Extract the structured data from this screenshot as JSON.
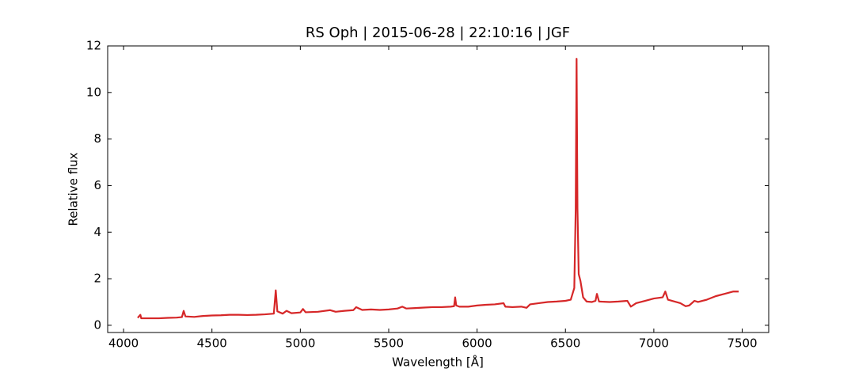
{
  "chart_data": {
    "type": "line",
    "title": "RS Oph | 2015-06-28 | 22:10:16 | JGF",
    "x_label": "Wavelength [Å]",
    "y_label": "Relative flux",
    "xlim": [
      3910,
      7650
    ],
    "ylim": [
      -0.31,
      12.0
    ],
    "xticks": [
      4000,
      4500,
      5000,
      5500,
      6000,
      6500,
      7000,
      7500
    ],
    "yticks": [
      0,
      2,
      4,
      6,
      8,
      10,
      12
    ],
    "tick_direction": "in",
    "series": [
      {
        "color": "#d62728",
        "x": [
          4080,
          4095,
          4100,
          4150,
          4200,
          4250,
          4300,
          4330,
          4340,
          4350,
          4400,
          4450,
          4500,
          4550,
          4600,
          4650,
          4700,
          4750,
          4800,
          4850,
          4861,
          4870,
          4900,
          4922,
          4950,
          5000,
          5015,
          5030,
          5100,
          5169,
          5200,
          5250,
          5300,
          5316,
          5350,
          5400,
          5450,
          5500,
          5550,
          5577,
          5600,
          5650,
          5700,
          5750,
          5800,
          5850,
          5870,
          5876,
          5882,
          5900,
          5950,
          6000,
          6050,
          6100,
          6150,
          6160,
          6200,
          6250,
          6280,
          6300,
          6350,
          6400,
          6450,
          6500,
          6530,
          6550,
          6558,
          6563,
          6568,
          6575,
          6585,
          6600,
          6620,
          6650,
          6670,
          6678,
          6690,
          6750,
          6800,
          6850,
          6870,
          6900,
          6950,
          7000,
          7050,
          7065,
          7080,
          7150,
          7180,
          7200,
          7230,
          7250,
          7300,
          7350,
          7400,
          7450,
          7480
        ],
        "values": [
          0.32,
          0.45,
          0.3,
          0.3,
          0.3,
          0.32,
          0.33,
          0.35,
          0.62,
          0.38,
          0.36,
          0.4,
          0.42,
          0.43,
          0.45,
          0.45,
          0.44,
          0.45,
          0.47,
          0.5,
          1.5,
          0.6,
          0.5,
          0.62,
          0.52,
          0.55,
          0.7,
          0.56,
          0.58,
          0.65,
          0.58,
          0.62,
          0.65,
          0.78,
          0.66,
          0.68,
          0.66,
          0.68,
          0.72,
          0.8,
          0.72,
          0.74,
          0.76,
          0.78,
          0.78,
          0.8,
          0.82,
          1.2,
          0.85,
          0.8,
          0.8,
          0.85,
          0.88,
          0.9,
          0.95,
          0.8,
          0.78,
          0.8,
          0.75,
          0.9,
          0.95,
          1.0,
          1.02,
          1.05,
          1.1,
          1.6,
          5.0,
          11.45,
          5.0,
          2.2,
          1.9,
          1.2,
          1.02,
          1.0,
          1.05,
          1.35,
          1.02,
          1.0,
          1.02,
          1.05,
          0.8,
          0.95,
          1.05,
          1.15,
          1.2,
          1.45,
          1.1,
          0.95,
          0.82,
          0.85,
          1.05,
          1.0,
          1.1,
          1.25,
          1.35,
          1.45,
          1.45
        ]
      }
    ]
  }
}
